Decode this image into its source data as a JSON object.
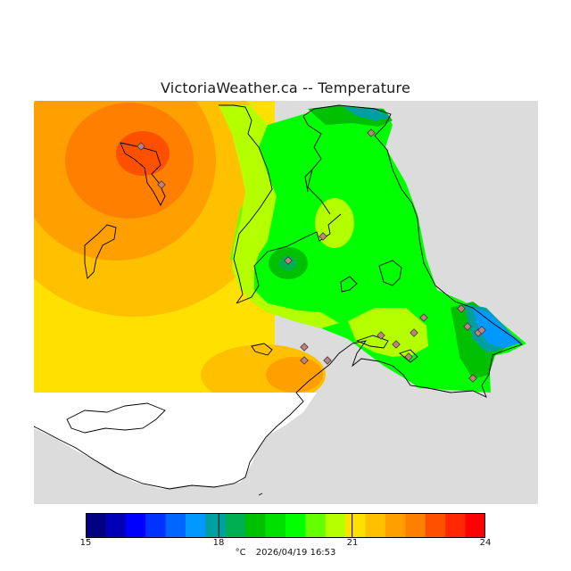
{
  "title": "VictoriaWeather.ca -- Temperature",
  "legend": {
    "min": 15,
    "max": 24,
    "ticks": [
      "15",
      "18",
      "21",
      "24"
    ],
    "colors": [
      "#000080",
      "#0000b4",
      "#0000ff",
      "#0033ff",
      "#0066ff",
      "#0099ff",
      "#00a0a0",
      "#00b050",
      "#00c000",
      "#00e000",
      "#00ff00",
      "#66ff00",
      "#b4ff00",
      "#ffe000",
      "#ffc000",
      "#ffa000",
      "#ff8000",
      "#ff5000",
      "#ff2800",
      "#ff0000"
    ]
  },
  "footer": {
    "unit": "°C",
    "timestamp": "2026/04/19 16:53"
  },
  "colors": {
    "land_gray": "#dcdcdc",
    "unsampled_white": "#ffffff",
    "station_marker": "#c08080"
  }
}
